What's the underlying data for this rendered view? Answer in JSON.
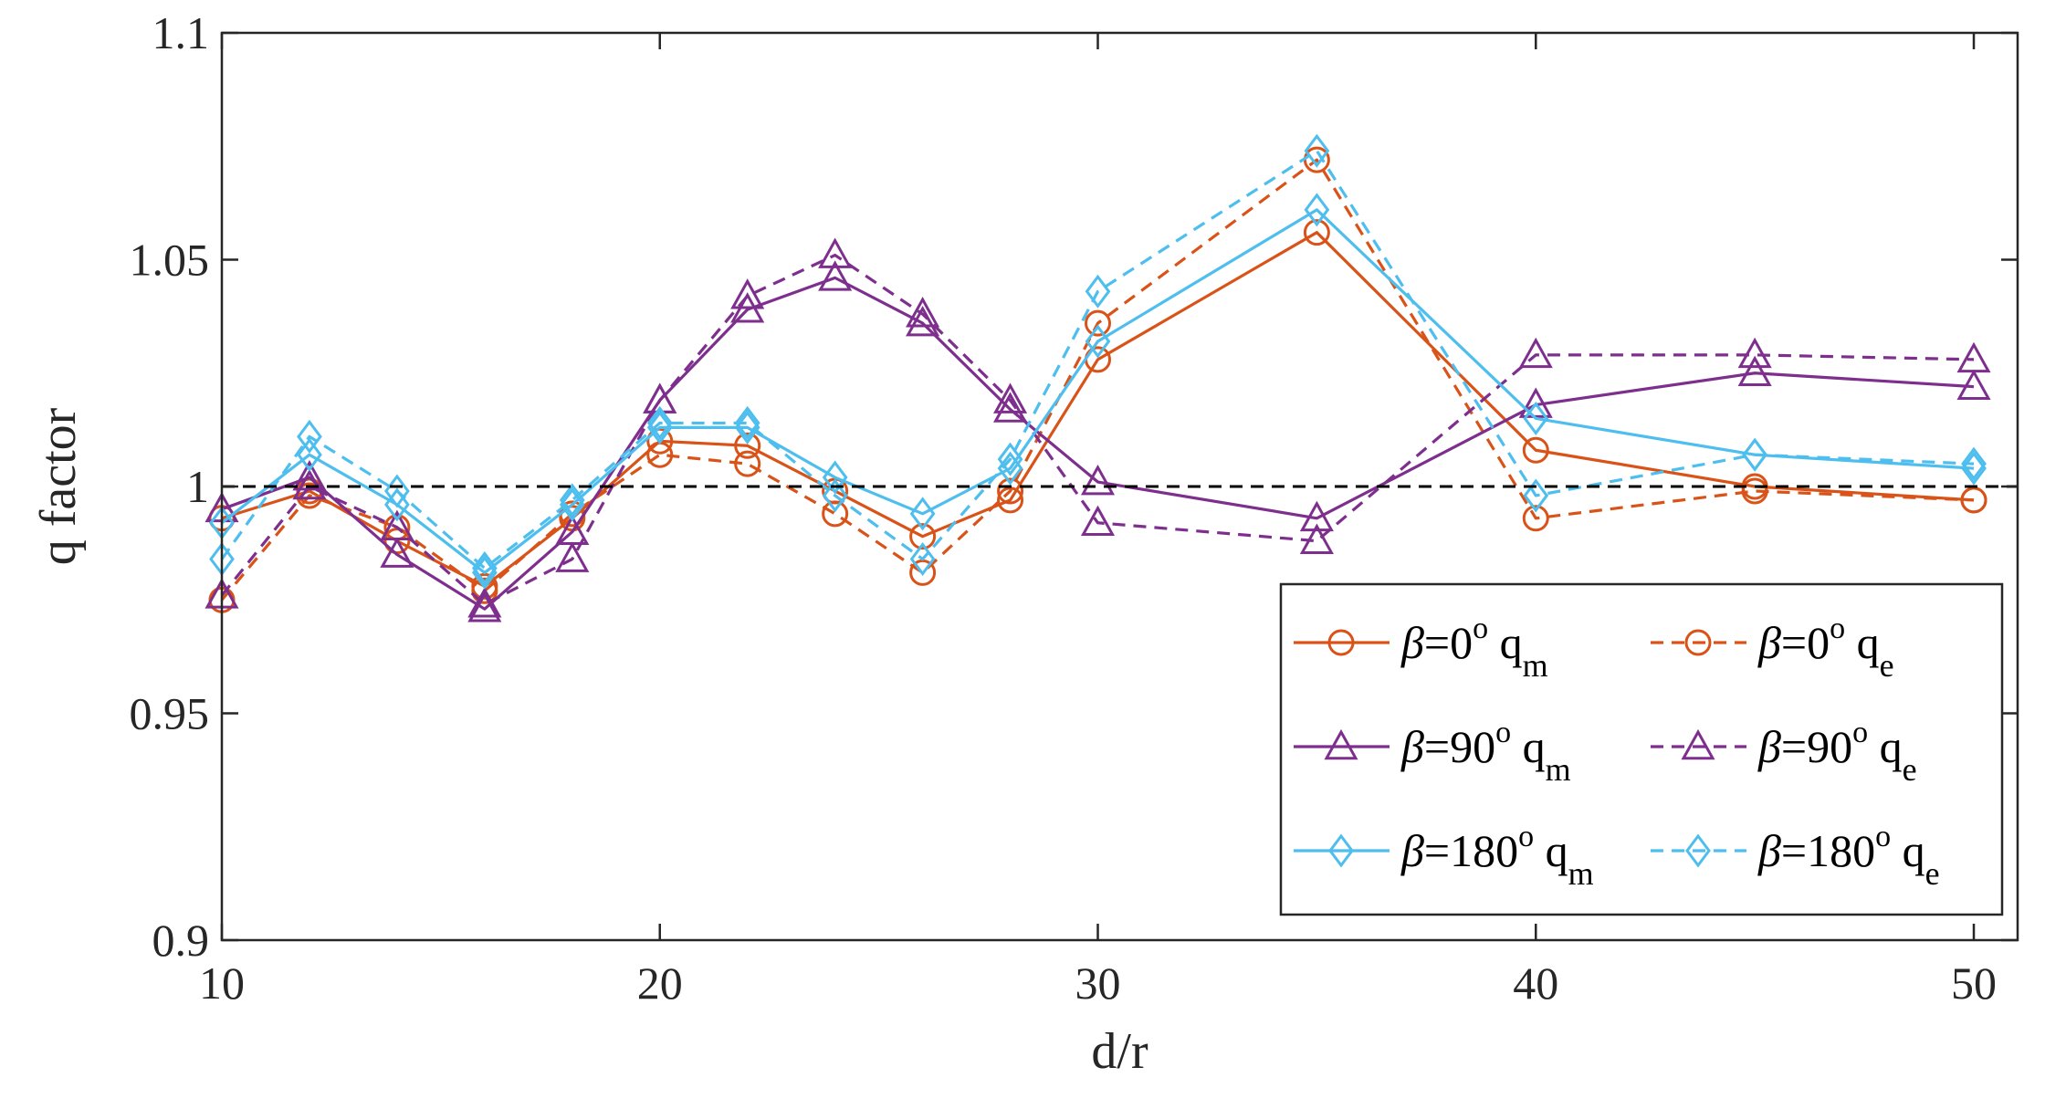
{
  "chart_data": {
    "type": "line",
    "xlabel": "d/r",
    "ylabel": "q factor",
    "xlim": [
      10,
      51
    ],
    "ylim": [
      0.9,
      1.1
    ],
    "xticks": [
      10,
      20,
      30,
      40,
      50
    ],
    "yticks": [
      0.9,
      0.95,
      1.0,
      1.05,
      1.1
    ],
    "xtick_labels": [
      "10",
      "20",
      "30",
      "40",
      "50"
    ],
    "ytick_labels": [
      "0.9",
      "0.95",
      "1",
      "1.05",
      "1.1"
    ],
    "grid": false,
    "legend_position": "bottom-right",
    "reference_line": {
      "y": 1.0,
      "style": "dashed",
      "color": "#000000"
    },
    "x": [
      10,
      12,
      14,
      16,
      18,
      20,
      22,
      24,
      26,
      28,
      30,
      35,
      40,
      45,
      50
    ],
    "series": [
      {
        "legend": {
          "beta": "β",
          "angle": "=0",
          "deg": "o",
          "q": " q",
          "sub": "m"
        },
        "color": "#D95319",
        "dash": "solid",
        "marker": "circle",
        "values": [
          0.993,
          0.999,
          0.988,
          0.978,
          0.993,
          1.01,
          1.009,
          0.999,
          0.989,
          0.997,
          1.028,
          1.056,
          1.008,
          1.0,
          0.997
        ]
      },
      {
        "legend": {
          "beta": "β",
          "angle": "=0",
          "deg": "o",
          "q": " q",
          "sub": "e"
        },
        "color": "#D95319",
        "dash": "dashed",
        "marker": "circle",
        "values": [
          0.975,
          0.998,
          0.991,
          0.977,
          0.994,
          1.007,
          1.005,
          0.994,
          0.981,
          0.999,
          1.036,
          1.072,
          0.993,
          0.999,
          0.997
        ]
      },
      {
        "legend": {
          "beta": "β",
          "angle": "=90",
          "deg": "o",
          "q": " q",
          "sub": "m"
        },
        "color": "#7E2F8E",
        "dash": "solid",
        "marker": "triangle",
        "values": [
          0.995,
          1.002,
          0.985,
          0.973,
          0.99,
          1.019,
          1.039,
          1.046,
          1.036,
          1.017,
          1.001,
          0.993,
          1.018,
          1.025,
          1.022
        ]
      },
      {
        "legend": {
          "beta": "β",
          "angle": "=90",
          "deg": "o",
          "q": " q",
          "sub": "e"
        },
        "color": "#7E2F8E",
        "dash": "dashed",
        "marker": "triangle",
        "values": [
          0.976,
          1.0,
          0.991,
          0.974,
          0.984,
          1.019,
          1.042,
          1.051,
          1.038,
          1.019,
          0.992,
          0.988,
          1.029,
          1.029,
          1.028
        ]
      },
      {
        "legend": {
          "beta": "β",
          "angle": "=180",
          "deg": "o",
          "q": " q",
          "sub": "m"
        },
        "color": "#4DBEEE",
        "dash": "solid",
        "marker": "diamond",
        "values": [
          0.992,
          1.007,
          0.996,
          0.981,
          0.996,
          1.013,
          1.013,
          1.002,
          0.994,
          1.004,
          1.032,
          1.061,
          1.015,
          1.007,
          1.004
        ]
      },
      {
        "legend": {
          "beta": "β",
          "angle": "=180",
          "deg": "o",
          "q": " q",
          "sub": "e"
        },
        "color": "#4DBEEE",
        "dash": "dashed",
        "marker": "diamond",
        "values": [
          0.984,
          1.011,
          0.999,
          0.982,
          0.997,
          1.014,
          1.014,
          0.998,
          0.984,
          1.006,
          1.043,
          1.074,
          0.998,
          1.007,
          1.005
        ]
      }
    ]
  }
}
